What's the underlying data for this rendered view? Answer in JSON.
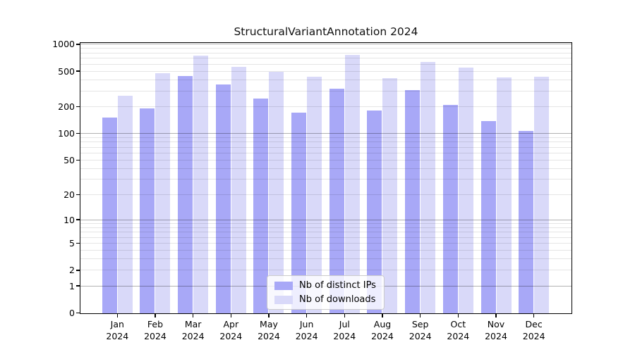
{
  "title": "StructuralVariantAnnotation 2024",
  "colors": {
    "ips": "#a8a8f7",
    "downloads": "#d9d9f9",
    "axis": "#000000",
    "grid_major": "rgba(0,0,0,0.30)",
    "grid_minor": "rgba(0,0,0,0.10)",
    "legend_background": "rgba(255,255,255,0.8)",
    "legend_border": "#cccccc"
  },
  "legend": {
    "items": [
      {
        "label": "Nb of distinct IPs",
        "series": "ips"
      },
      {
        "label": "Nb of downloads",
        "series": "downloads"
      }
    ],
    "position": "lower center"
  },
  "chart_data": {
    "type": "bar",
    "title": "StructuralVariantAnnotation 2024",
    "categories": [
      "Jan 2024",
      "Feb 2024",
      "Mar 2024",
      "Apr 2024",
      "May 2024",
      "Jun 2024",
      "Jul 2024",
      "Aug 2024",
      "Sep 2024",
      "Oct 2024",
      "Nov 2024",
      "Dec 2024"
    ],
    "series": [
      {
        "name": "Nb of distinct IPs",
        "key": "ips",
        "color": "#a8a8f7",
        "values": [
          150,
          190,
          445,
          355,
          245,
          172,
          320,
          180,
          305,
          210,
          137,
          107
        ]
      },
      {
        "name": "Nb of downloads",
        "key": "downloads",
        "color": "#d9d9f9",
        "values": [
          263,
          475,
          745,
          560,
          490,
          435,
          760,
          420,
          630,
          550,
          425,
          437
        ]
      }
    ],
    "yscale": "log1p",
    "ylim": [
      0,
      1000
    ],
    "y_ticks": [
      0,
      1,
      2,
      5,
      10,
      20,
      50,
      100,
      200,
      500,
      1000
    ],
    "grid": "horizontal; major gridlines at 1,10,100,1000; minor at 2-9 per decade",
    "legend_position": "lower center",
    "xlabel": "",
    "ylabel": ""
  }
}
